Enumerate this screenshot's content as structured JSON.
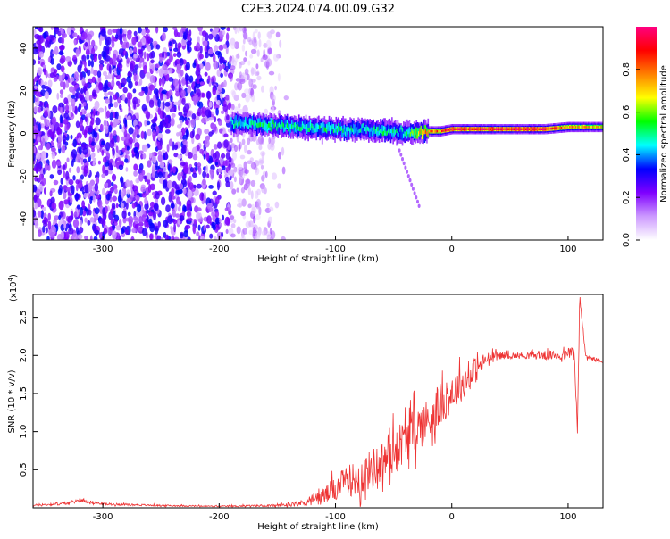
{
  "title": "C2E3.2024.074.00.09.G32",
  "chart_data": [
    {
      "type": "heatmap",
      "xlabel": "Height of straight line (km)",
      "ylabel": "Frequency (Hz)",
      "xlim": [
        -360,
        130
      ],
      "ylim": [
        -50,
        50
      ],
      "xticks": [
        -300,
        -200,
        -100,
        0,
        100
      ],
      "yticks": [
        -40,
        -20,
        0,
        20,
        40
      ],
      "colorbar": {
        "label": "Normalized spectral amplitude",
        "range": [
          0.0,
          1.0
        ],
        "ticks": [
          0.0,
          0.2,
          0.4,
          0.6,
          0.8
        ],
        "colors": [
          "#ffffff",
          "#cc99ff",
          "#7f00ff",
          "#0000ff",
          "#00ffff",
          "#00ff00",
          "#ffff00",
          "#ff8000",
          "#ff0000",
          "#ff0080"
        ]
      },
      "band": {
        "x": [
          -190,
          -160,
          -130,
          -100,
          -80,
          -60,
          -40,
          -25,
          -10,
          0,
          40,
          80,
          100,
          130
        ],
        "center_hz": [
          5,
          4,
          3,
          2,
          2,
          1,
          0,
          1,
          1,
          2,
          2,
          2,
          3,
          3
        ],
        "peak_amplitude": [
          0.45,
          0.5,
          0.5,
          0.5,
          0.45,
          0.5,
          0.45,
          0.75,
          0.8,
          0.9,
          0.95,
          0.9,
          0.75,
          0.7
        ]
      },
      "noise_region": {
        "x_range": [
          -360,
          -140
        ],
        "level": 0.2
      }
    },
    {
      "type": "line",
      "xlabel": "Height of straight line (km)",
      "ylabel": "SNR (10 * v/v)",
      "y_multiplier": "(x10",
      "y_multiplier_exp": "4",
      "y_multiplier_close": ")",
      "xlim": [
        -360,
        130
      ],
      "ylim": [
        0,
        28000
      ],
      "xticks": [
        -300,
        -200,
        -100,
        0,
        100
      ],
      "yticks": [
        5000,
        10000,
        15000,
        20000,
        25000
      ],
      "ytick_labels": [
        "0.5",
        "1.0",
        "1.5",
        "2.0",
        "2.5"
      ],
      "series": [
        {
          "color": "#ee3333",
          "x": [
            -360,
            -330,
            -320,
            -300,
            -250,
            -200,
            -150,
            -130,
            -110,
            -100,
            -90,
            -80,
            -70,
            -60,
            -50,
            -40,
            -30,
            -20,
            -10,
            0,
            10,
            20,
            30,
            40,
            60,
            80,
            100,
            105,
            108,
            110,
            115,
            130
          ],
          "values": [
            300,
            600,
            1000,
            500,
            300,
            200,
            300,
            600,
            1500,
            2500,
            3500,
            4000,
            5000,
            6000,
            7500,
            9000,
            10500,
            11500,
            13500,
            15000,
            16500,
            18000,
            19500,
            20000,
            20000,
            20000,
            20000,
            21000,
            10000,
            27500,
            20000,
            19000
          ],
          "noise": [
            150,
            200,
            250,
            150,
            100,
            80,
            150,
            400,
            1200,
            1600,
            2000,
            2400,
            2600,
            2800,
            3000,
            3000,
            3000,
            3000,
            2800,
            2500,
            2200,
            1800,
            900,
            500,
            400,
            600,
            700,
            900,
            700,
            800,
            400,
            300
          ]
        }
      ]
    }
  ]
}
